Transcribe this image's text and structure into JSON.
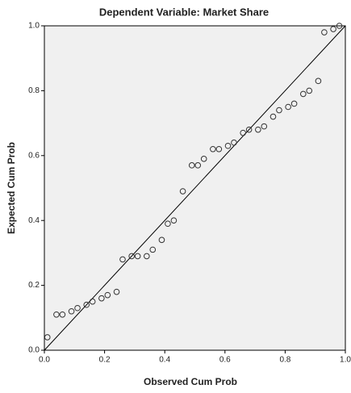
{
  "chart_data": {
    "type": "scatter",
    "title": "Dependent Variable: Market Share",
    "x_label": "Observed Cum Prob",
    "y_label": "Expected Cum Prob",
    "x": [
      0.01,
      0.04,
      0.06,
      0.09,
      0.11,
      0.14,
      0.16,
      0.19,
      0.21,
      0.24,
      0.26,
      0.29,
      0.31,
      0.34,
      0.36,
      0.39,
      0.41,
      0.43,
      0.46,
      0.49,
      0.51,
      0.53,
      0.56,
      0.58,
      0.61,
      0.63,
      0.66,
      0.68,
      0.71,
      0.73,
      0.76,
      0.78,
      0.81,
      0.83,
      0.86,
      0.88,
      0.91,
      0.93,
      0.96,
      0.98
    ],
    "values": [
      0.04,
      0.11,
      0.11,
      0.12,
      0.13,
      0.14,
      0.15,
      0.16,
      0.17,
      0.18,
      0.28,
      0.29,
      0.29,
      0.29,
      0.31,
      0.34,
      0.39,
      0.4,
      0.49,
      0.57,
      0.57,
      0.59,
      0.62,
      0.62,
      0.63,
      0.64,
      0.67,
      0.68,
      0.68,
      0.69,
      0.72,
      0.74,
      0.75,
      0.76,
      0.79,
      0.8,
      0.83,
      0.98,
      0.99,
      1.0
    ],
    "color": "#333333",
    "background": "#f0f0f0",
    "xlim": [
      0,
      1
    ],
    "ylim": [
      0,
      1
    ],
    "xticks": [
      {
        "value": 0,
        "label": "0.0"
      },
      0.2,
      0.4,
      0.6,
      0.8,
      {
        "value": 1,
        "label": "1.0"
      }
    ],
    "yticks": [
      {
        "value": 0,
        "label": "0.0"
      },
      0.2,
      0.4,
      0.6,
      0.8,
      {
        "value": 1,
        "label": "1.0"
      }
    ],
    "reference_line": true
  }
}
